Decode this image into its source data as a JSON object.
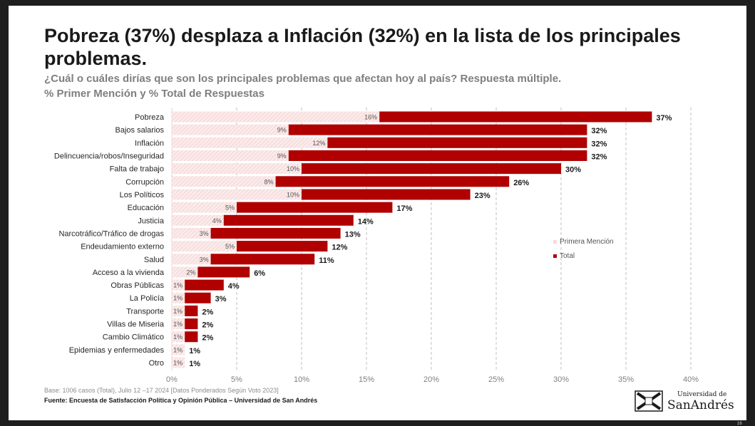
{
  "slide": {
    "title": "Pobreza (37%) desplaza a Inflación (32%) en la lista de los principales problemas.",
    "subtitle_line1": "¿Cuál o cuáles dirías que son los principales problemas que afectan hoy al país? Respuesta múltiple.",
    "subtitle_line2": "% Primer Mención y % Total de Respuestas",
    "footnote": "Base: 1006 casos (Total), Julio 12 –17 2024 [Datos Ponderados Según Voto 2023]",
    "source": "Fuente: Encuesta de Satisfacción Política y Opinión Pública – Universidad de San Andrés",
    "logo_small": "Universidad de",
    "logo_big": "SanAndrés",
    "page_number": "16"
  },
  "chart_data": {
    "type": "bar",
    "orientation": "horizontal",
    "categories": [
      "Pobreza",
      "Bajos salarios",
      "Inflación",
      "Delincuencia/robos/Inseguridad",
      "Falta de trabajo",
      "Corrupción",
      "Los Políticos",
      "Educación",
      "Justicia",
      "Narcotráfico/Tráfico de drogas",
      "Endeudamiento externo",
      "Salud",
      "Acceso a la vivienda",
      "Obras Públicas",
      "La Policía",
      "Transporte",
      "Villas de Miseria",
      "Cambio Climático",
      "Epidemias y enfermedades",
      "Otro"
    ],
    "series": [
      {
        "name": "Primera Mención",
        "values": [
          16,
          9,
          12,
          9,
          10,
          8,
          10,
          5,
          4,
          3,
          5,
          3,
          2,
          1,
          1,
          1,
          1,
          1,
          1,
          1
        ],
        "labels": [
          "16%",
          "9%",
          "12%",
          "9%",
          "10%",
          "8%",
          "10%",
          "5%",
          "4%",
          "3%",
          "5%",
          "3%",
          "2%",
          "1%",
          "1%",
          "1%",
          "1%",
          "1%",
          "1%",
          "1%"
        ],
        "color": "#f6dada"
      },
      {
        "name": "Total",
        "values": [
          37,
          32,
          32,
          32,
          30,
          26,
          23,
          17,
          14,
          13,
          12,
          11,
          6,
          4,
          3,
          2,
          2,
          2,
          1,
          1
        ],
        "labels": [
          "37%",
          "32%",
          "32%",
          "32%",
          "30%",
          "26%",
          "23%",
          "17%",
          "14%",
          "13%",
          "12%",
          "11%",
          "6%",
          "4%",
          "3%",
          "2%",
          "2%",
          "2%",
          "1%",
          "1%"
        ],
        "color": "#b00000"
      }
    ],
    "xlim": [
      0,
      40
    ],
    "x_ticks": [
      0,
      5,
      10,
      15,
      20,
      25,
      30,
      35,
      40
    ],
    "x_tick_labels": [
      "0%",
      "5%",
      "10%",
      "15%",
      "20%",
      "25%",
      "30%",
      "35%",
      "40%"
    ],
    "grid": "vertical dashed",
    "legend_position": "right"
  }
}
